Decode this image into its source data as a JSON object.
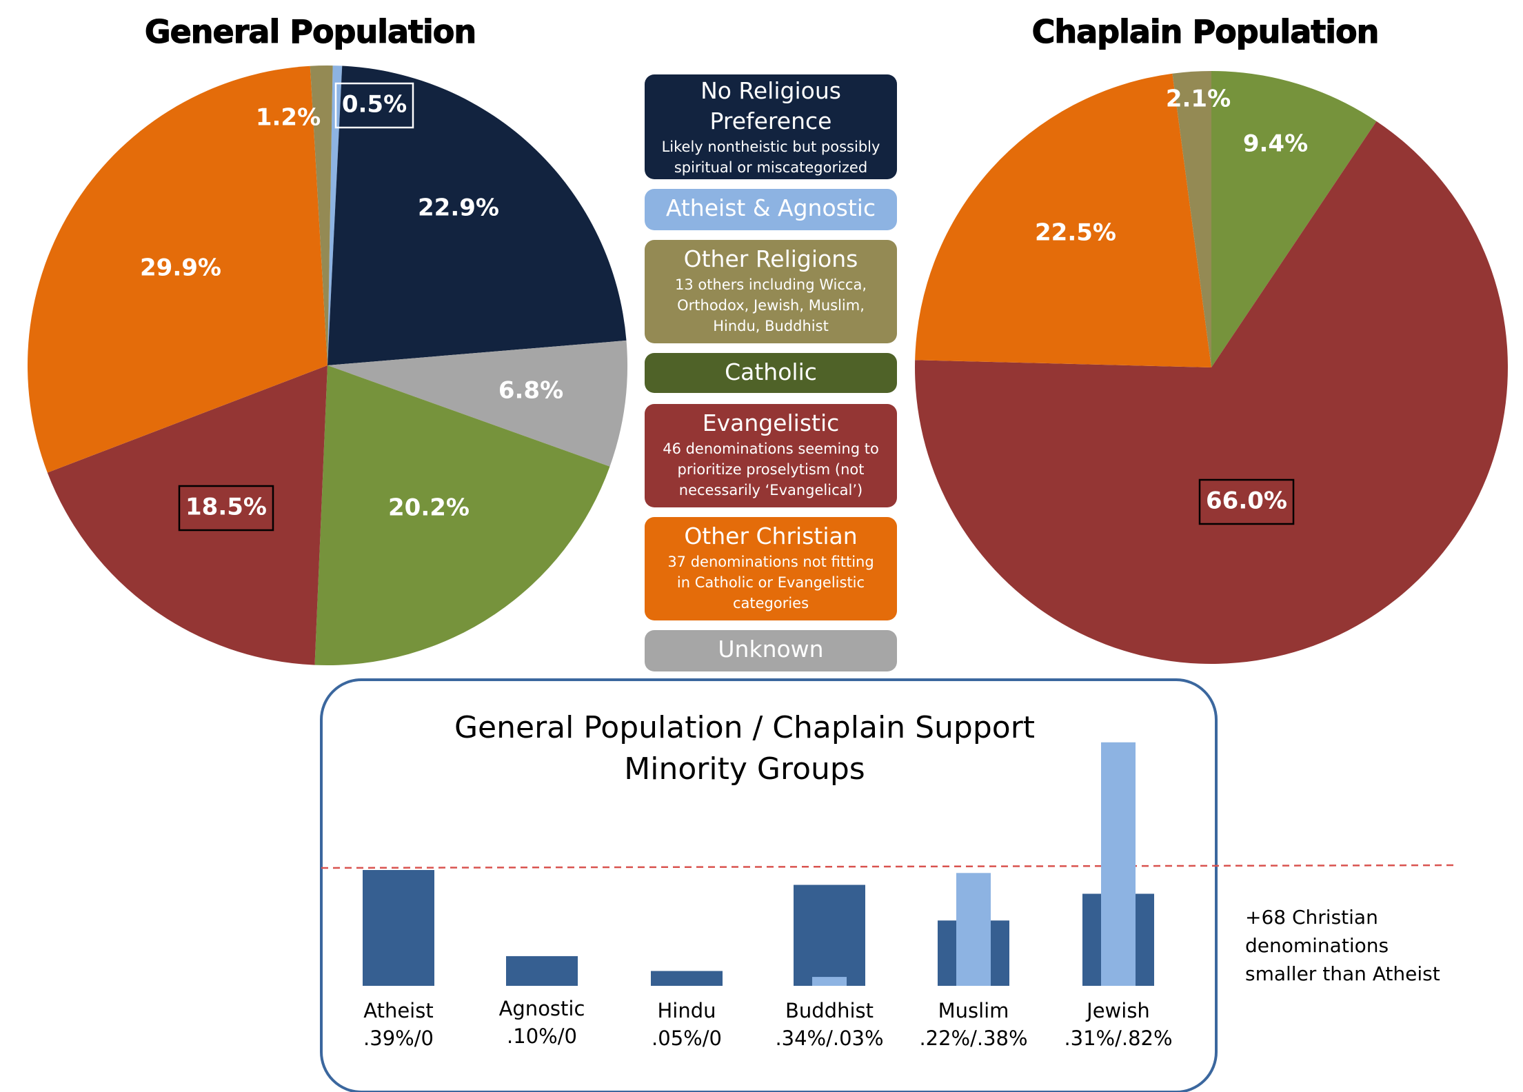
{
  "colors": {
    "no_pref": "#12233f",
    "atheist": "#8db3e2",
    "other_rel": "#948a54",
    "catholic": "#4f6228",
    "catholic_slice": "#76933c",
    "evangelistic": "#943634",
    "other_christian": "#e46c0a",
    "unknown": "#a6a6a6",
    "bar_general": "#365f91",
    "bar_chaplain": "#8db3e2",
    "inset_border": "#3b679e",
    "dashed_line": "#d9534f"
  },
  "chart_data": [
    {
      "type": "pie",
      "title": "General Population",
      "slices": [
        {
          "key": "atheist",
          "value": 0.5,
          "label": "0.5%",
          "boxed": true
        },
        {
          "key": "no_pref",
          "value": 22.9,
          "label": "22.9%"
        },
        {
          "key": "unknown",
          "value": 6.8,
          "label": "6.8%"
        },
        {
          "key": "catholic_slice",
          "value": 20.2,
          "label": "20.2%"
        },
        {
          "key": "evangelistic",
          "value": 18.5,
          "label": "18.5%",
          "boxed": true
        },
        {
          "key": "other_christian",
          "value": 29.9,
          "label": "29.9%"
        },
        {
          "key": "other_rel",
          "value": 1.2,
          "label": "1.2%"
        }
      ]
    },
    {
      "type": "pie",
      "title": "Chaplain Population",
      "slices": [
        {
          "key": "catholic_slice",
          "value": 9.4,
          "label": "9.4%"
        },
        {
          "key": "evangelistic",
          "value": 66.0,
          "label": "66.0%",
          "boxed": true
        },
        {
          "key": "other_christian",
          "value": 22.5,
          "label": "22.5%"
        },
        {
          "key": "other_rel",
          "value": 2.1,
          "label": "2.1%"
        }
      ]
    },
    {
      "type": "bar",
      "title": "General Population / Chaplain Support",
      "subtitle": "Minority Groups",
      "categories": [
        "Atheist",
        "Agnostic",
        "Hindu",
        "Buddhist",
        "Muslim",
        "Jewish"
      ],
      "value_labels": [
        ".39%/0",
        ".10%/0",
        ".05%/0",
        ".34%/.03%",
        ".22%/.38%",
        ".31%/.82%"
      ],
      "series": [
        {
          "name": "General Population",
          "values": [
            0.39,
            0.1,
            0.05,
            0.34,
            0.22,
            0.31
          ]
        },
        {
          "name": "Chaplain Support",
          "values": [
            0,
            0,
            0,
            0.03,
            0.38,
            0.82
          ]
        }
      ],
      "reference_line_value": 0.39,
      "note": [
        "+68 Christian",
        "denominations",
        "smaller than Atheist"
      ]
    }
  ],
  "legend": [
    {
      "key": "no_pref",
      "title": "No Religious Preference",
      "desc": "Likely nontheistic but possibly spiritual or miscategorized"
    },
    {
      "key": "atheist",
      "title": "Atheist & Agnostic",
      "desc": ""
    },
    {
      "key": "other_rel",
      "title": "Other Religions",
      "desc": "13 others including Wicca, Orthodox, Jewish, Muslim, Hindu, Buddhist"
    },
    {
      "key": "catholic",
      "title": "Catholic",
      "desc": ""
    },
    {
      "key": "evangelistic",
      "title": "Evangelistic",
      "desc": "46 denominations seeming to prioritize proselytism (not necessarily ‘Evangelical’)"
    },
    {
      "key": "other_christian",
      "title": "Other Christian",
      "desc": "37 denominations not fitting in Catholic or Evangelistic categories"
    },
    {
      "key": "unknown",
      "title": "Unknown",
      "desc": ""
    }
  ]
}
